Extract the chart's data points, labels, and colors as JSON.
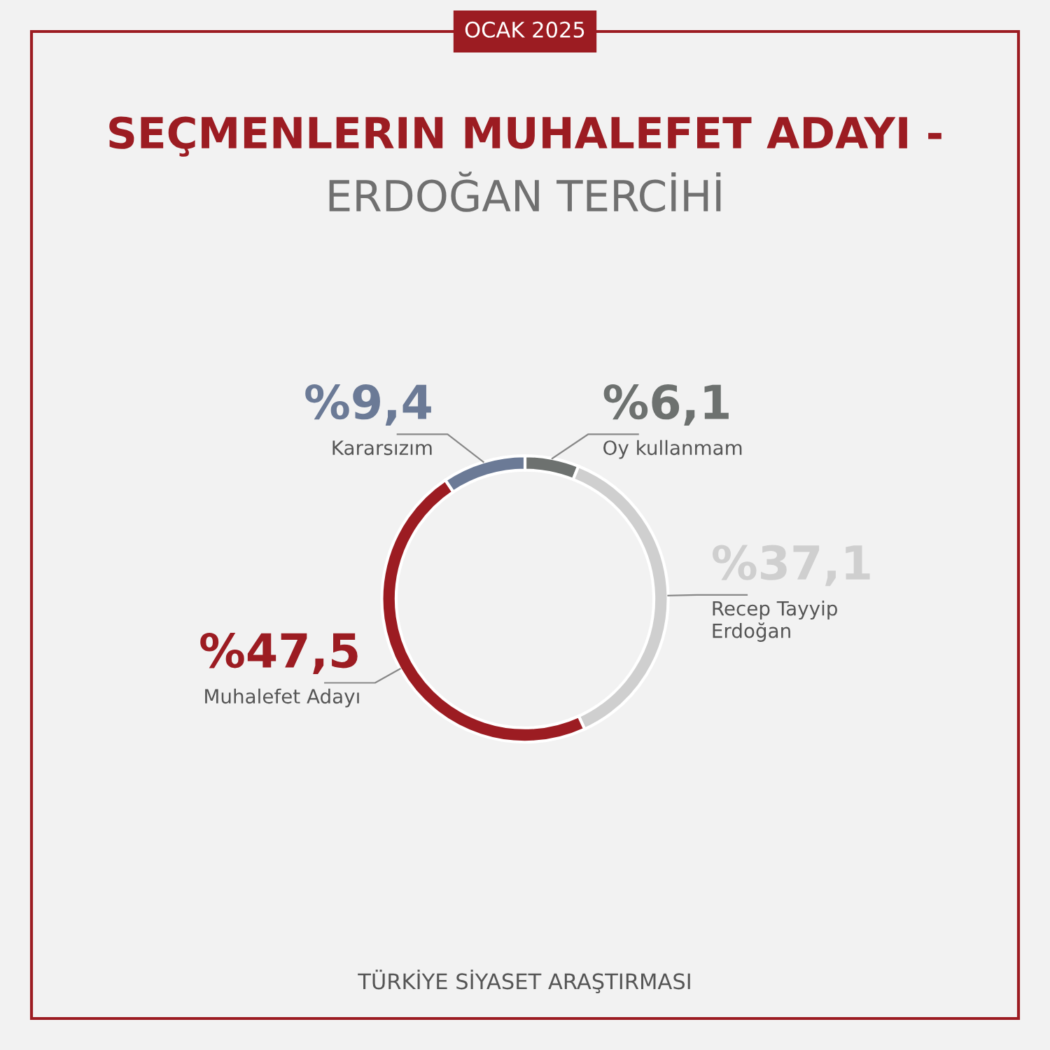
{
  "chart_data": {
    "type": "donut",
    "title": "SEÇMENLERIN MUHALEFET ADAYI -",
    "subtitle": "ERDOĞAN TERCİHİ",
    "categories": [
      "Oy kullanmam",
      "Recep Tayyip\nErdoğan",
      "Muhalefet Adayı",
      "Kararsızım"
    ],
    "values": [
      6.1,
      37.1,
      47.5,
      9.4
    ],
    "colors": [
      "#6d716f",
      "#cfcfcf",
      "#9c1c22",
      "#6b7a96"
    ],
    "value_labels": [
      "%6,1",
      "%37,1",
      "%47,5",
      "%9,4"
    ],
    "annotations": [
      "OCAK 2025",
      "TÜRKİYE SİYASET ARAŞTIRMASI"
    ],
    "legend": false
  }
}
